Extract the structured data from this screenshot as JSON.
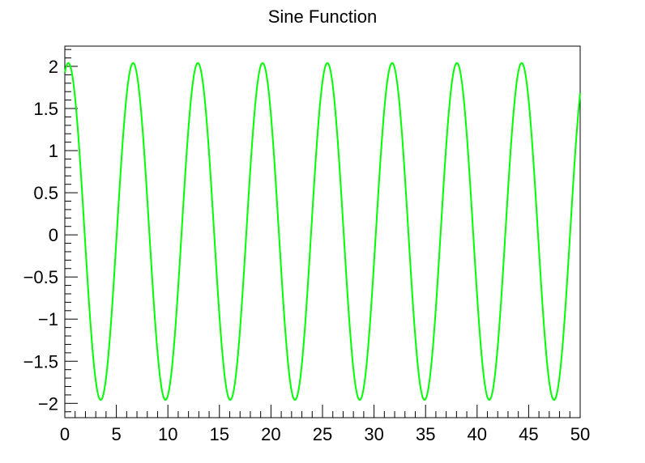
{
  "chart_data": {
    "type": "line",
    "title": "Sine Function",
    "xlabel": "",
    "ylabel": "",
    "xlim": [
      0,
      50
    ],
    "ylim": [
      -2.17,
      2.24
    ],
    "xticks": [
      0,
      5,
      10,
      15,
      20,
      25,
      30,
      35,
      40,
      45,
      50
    ],
    "xtick_labels": [
      "0",
      "5",
      "10",
      "15",
      "20",
      "25",
      "30",
      "35",
      "40",
      "45",
      "50"
    ],
    "yticks": [
      2,
      1.5,
      1,
      0.5,
      0,
      -0.5,
      -1,
      -1.5,
      -2
    ],
    "ytick_labels": [
      "2",
      "1.5",
      "1",
      "0.5",
      "0",
      "−0.5",
      "−1",
      "−1.5",
      "−2"
    ],
    "grid": false,
    "legend": "none",
    "series": [
      {
        "function": "0.04 + 2*sin(x + 1.23)",
        "x_range": [
          0,
          50
        ],
        "color": "#00ff00"
      }
    ]
  }
}
